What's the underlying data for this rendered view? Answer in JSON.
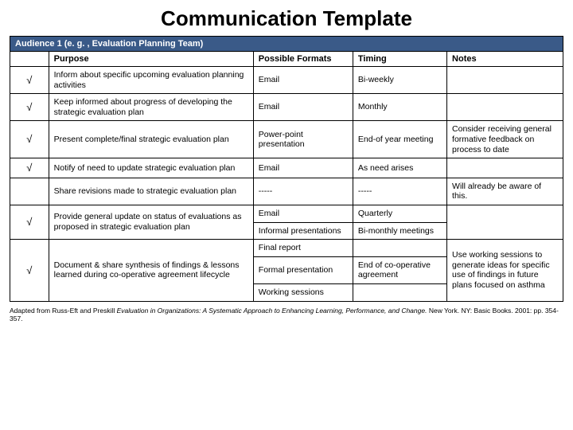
{
  "title": "Communication Template",
  "header_band": "Audience 1 (e. g. , Evaluation Planning Team)",
  "columns": {
    "check": "",
    "purpose": "Purpose",
    "formats": "Possible Formats",
    "timing": "Timing",
    "notes": "Notes"
  },
  "colwidths": {
    "check": "7%",
    "purpose": "37%",
    "formats": "18%",
    "timing": "17%",
    "notes": "21%"
  },
  "rows": [
    {
      "check": "√",
      "purpose": "Inform about specific upcoming evaluation planning activities",
      "formats": "Email",
      "timing": "Bi-weekly",
      "notes": ""
    },
    {
      "check": "√",
      "purpose": "Keep informed about progress of developing the strategic evaluation plan",
      "formats": "Email",
      "timing": "Monthly",
      "notes": ""
    },
    {
      "check": "√",
      "purpose": "Present complete/final strategic evaluation plan",
      "formats": "Power-point presentation",
      "timing": "End-of year meeting",
      "notes": "Consider receiving general formative feedback on process to date"
    },
    {
      "check": "√",
      "purpose": "Notify of need to update strategic evaluation plan",
      "formats": "Email",
      "timing": "As need arises",
      "notes": ""
    },
    {
      "check": "",
      "purpose": "Share revisions made to strategic evaluation plan",
      "formats": "-----",
      "timing": "-----",
      "notes": "Will already be aware of this."
    }
  ],
  "row6": {
    "check": "√",
    "purpose": "Provide general update on status of evaluations as proposed in strategic evaluation plan",
    "formats_a": "Email",
    "timing_a": "Quarterly",
    "formats_b": "Informal presentations",
    "timing_b": "Bi-monthly meetings",
    "notes": ""
  },
  "row7": {
    "check": "√",
    "purpose": "Document & share synthesis of findings & lessons learned during co-operative agreement lifecycle",
    "formats_a": "Final report",
    "timing_a": "",
    "formats_b": "Formal presentation",
    "timing_b": "End of co-operative agreement",
    "formats_c": "Working sessions",
    "timing_c": "",
    "notes": "Use working sessions to generate ideas for specific use of findings in future plans focused on asthma"
  },
  "footnote": {
    "prefix": "Adapted from Russ-Eft and Preskill ",
    "ital": "Evaluation in Organizations: A Systematic Approach to Enhancing Learning, Performance, and Change.",
    "suffix": "  New York. NY: Basic Books. 2001: pp. 354-357."
  }
}
